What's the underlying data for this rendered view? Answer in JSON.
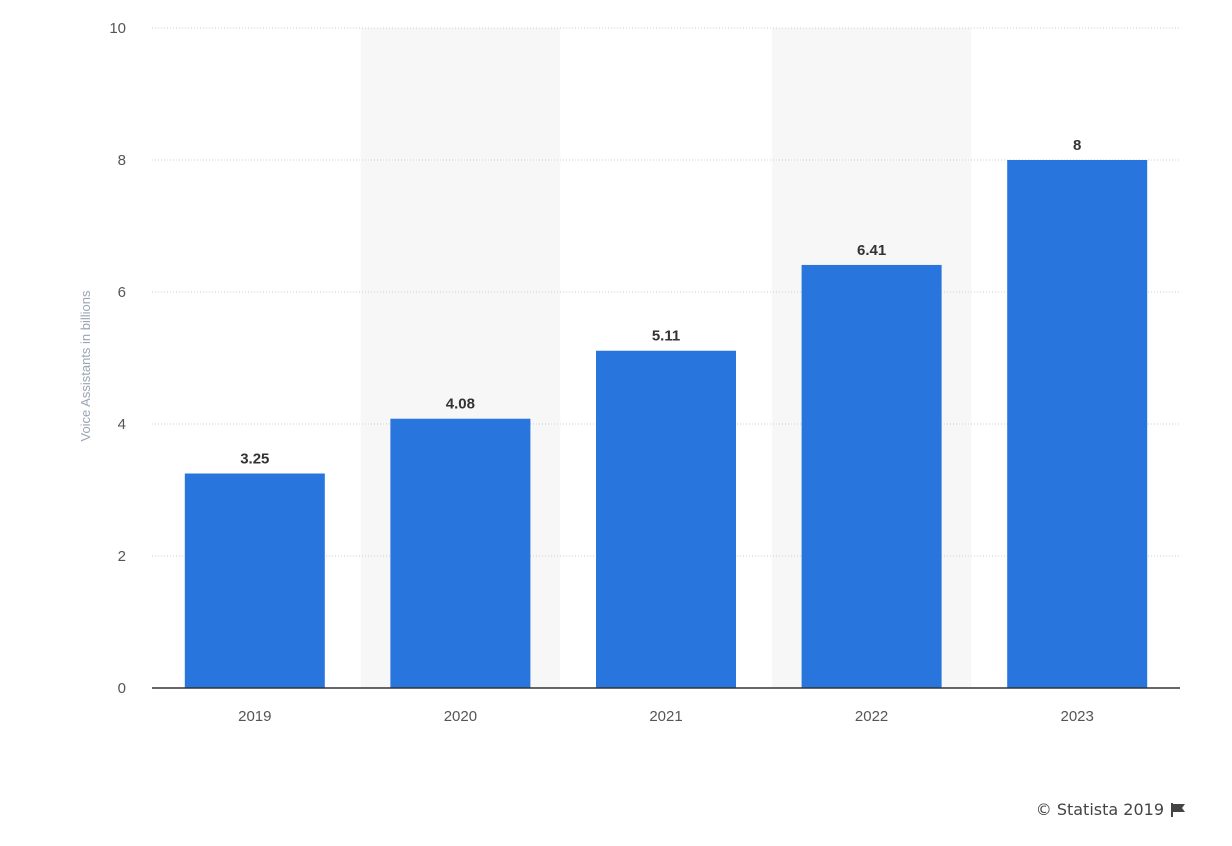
{
  "chart_data": {
    "type": "bar",
    "categories": [
      "2019",
      "2020",
      "2021",
      "2022",
      "2023"
    ],
    "series": [
      {
        "values": [
          3.25,
          4.08,
          5.11,
          6.41,
          8
        ]
      }
    ],
    "value_labels": [
      "3.25",
      "4.08",
      "5.11",
      "6.41",
      "8"
    ],
    "ylabel": "Voice Assistants in billions",
    "ylim": [
      0,
      10
    ],
    "yticks": [
      "0",
      "2",
      "4",
      "6",
      "8",
      "10"
    ],
    "grid": true,
    "bar_color": "#2875dd",
    "alternate_band_color": "#f7f7f7"
  },
  "footer": {
    "credit": "© Statista 2019",
    "flag_icon": "flag-icon"
  }
}
